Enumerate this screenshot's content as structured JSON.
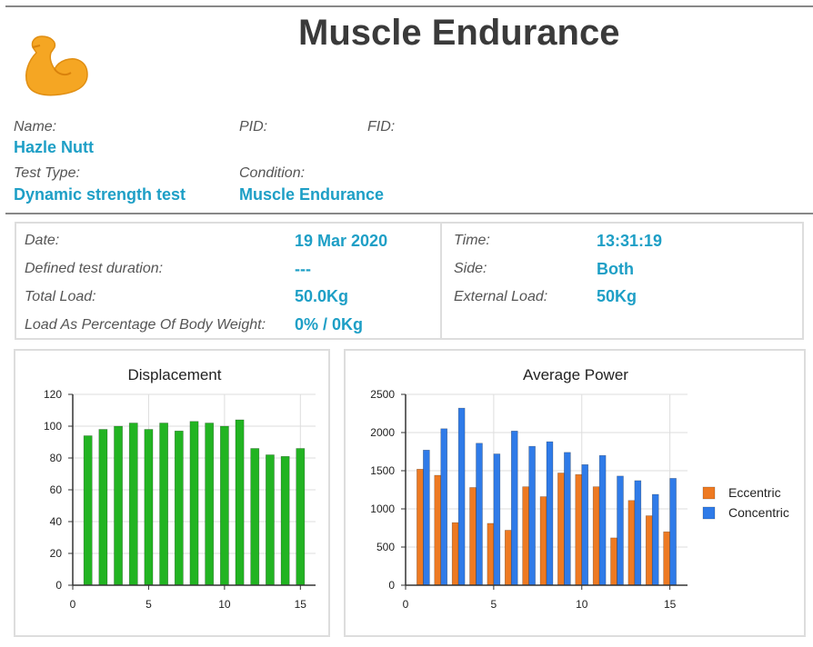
{
  "report": {
    "title": "Muscle Endurance"
  },
  "patient": {
    "name_label": "Name:",
    "name_value": "Hazle Nutt",
    "pid_label": "PID:",
    "fid_label": "FID:",
    "test_type_label": "Test Type:",
    "test_type_value": "Dynamic strength test",
    "condition_label": "Condition:",
    "condition_value": "Muscle Endurance"
  },
  "details": {
    "date_label": "Date:",
    "date_value": "19 Mar 2020",
    "duration_label": "Defined test duration:",
    "duration_value": "---",
    "total_load_label": "Total Load:",
    "total_load_value": "50.0Kg",
    "load_pct_label": "Load As Percentage Of Body Weight:",
    "load_pct_value": "0% / 0Kg",
    "time_label": "Time:",
    "time_value": "13:31:19",
    "side_label": "Side:",
    "side_value": "Both",
    "external_load_label": "External Load:",
    "external_load_value": "50Kg"
  },
  "colors": {
    "accent": "#1e9fc6",
    "displacement": "#22b422",
    "eccentric": "#ee7a22",
    "concentric": "#2f7be8"
  },
  "chart_data": [
    {
      "type": "bar",
      "title": "Displacement",
      "x": [
        1,
        2,
        3,
        4,
        5,
        6,
        7,
        8,
        9,
        10,
        11,
        12,
        13,
        14,
        15
      ],
      "series": [
        {
          "values": [
            94,
            98,
            100,
            102,
            98,
            102,
            97,
            103,
            102,
            100,
            104,
            86,
            82,
            81,
            86
          ]
        }
      ],
      "xlim": [
        0,
        16
      ],
      "ylim": [
        0,
        120
      ],
      "xticks": [
        0,
        5,
        10,
        15
      ],
      "yticks": [
        0,
        20,
        40,
        60,
        80,
        100,
        120
      ],
      "xlabel": "",
      "ylabel": "",
      "grid": true
    },
    {
      "type": "bar",
      "title": "Average Power",
      "x": [
        1,
        2,
        3,
        4,
        5,
        6,
        7,
        8,
        9,
        10,
        11,
        12,
        13,
        14,
        15
      ],
      "series": [
        {
          "name": "Eccentric",
          "values": [
            1520,
            1440,
            820,
            1280,
            810,
            720,
            1290,
            1160,
            1470,
            1450,
            1290,
            620,
            1110,
            910,
            700
          ]
        },
        {
          "name": "Concentric",
          "values": [
            1770,
            2050,
            2320,
            1860,
            1720,
            2020,
            1820,
            1880,
            1740,
            1580,
            1700,
            1430,
            1370,
            1190,
            1400
          ]
        }
      ],
      "xlim": [
        0,
        16
      ],
      "ylim": [
        0,
        2500
      ],
      "xticks": [
        0,
        5,
        10,
        15
      ],
      "yticks": [
        0,
        500,
        1000,
        1500,
        2000,
        2500
      ],
      "xlabel": "",
      "ylabel": "",
      "grid": true,
      "legend": "right"
    }
  ]
}
